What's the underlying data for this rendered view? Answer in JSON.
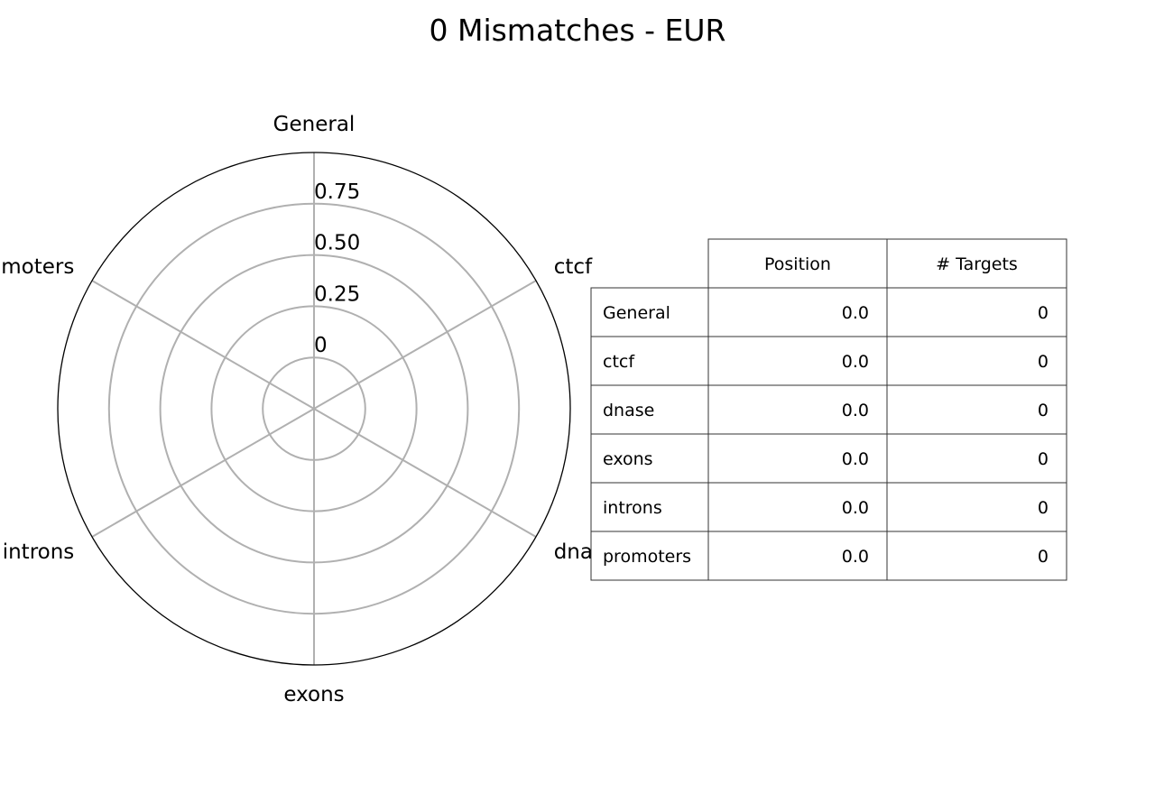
{
  "chart_data": {
    "type": "radar",
    "title": "0 Mismatches - EUR",
    "categories": [
      "General",
      "ctcf",
      "dnase",
      "exons",
      "introns",
      "promoters"
    ],
    "series": [
      {
        "values": [
          0,
          0,
          0,
          0,
          0,
          0
        ]
      }
    ],
    "radial_ticks": [
      "0",
      "0.25",
      "0.50",
      "0.75"
    ],
    "radial_tick_values": [
      0,
      0.25,
      0.5,
      0.75
    ],
    "rlim": [
      -0.25,
      1.0
    ],
    "grid": true,
    "table": {
      "columns": [
        "Position",
        "# Targets"
      ],
      "rows": [
        {
          "label": "General",
          "position": "0.0",
          "targets": "0"
        },
        {
          "label": "ctcf",
          "position": "0.0",
          "targets": "0"
        },
        {
          "label": "dnase",
          "position": "0.0",
          "targets": "0"
        },
        {
          "label": "exons",
          "position": "0.0",
          "targets": "0"
        },
        {
          "label": "introns",
          "position": "0.0",
          "targets": "0"
        },
        {
          "label": "promoters",
          "position": "0.0",
          "targets": "0"
        }
      ]
    }
  }
}
